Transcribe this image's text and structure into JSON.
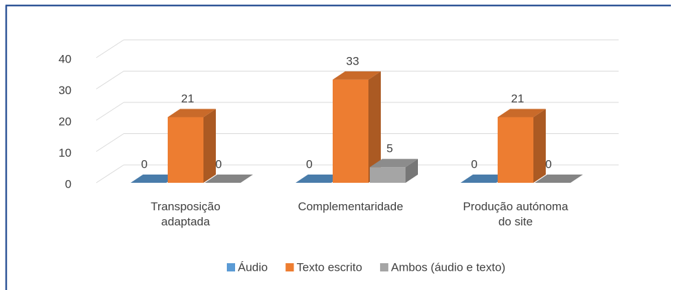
{
  "chart_data": {
    "type": "bar3d",
    "categories": [
      "Transposição adaptada",
      "Complementaridade",
      "Produção autónoma do site"
    ],
    "series": [
      {
        "name": "Áudio",
        "color": "#5b9bd5",
        "values": [
          0,
          0,
          0
        ]
      },
      {
        "name": "Texto escrito",
        "color": "#ed7d31",
        "values": [
          21,
          33,
          21
        ]
      },
      {
        "name": "Ambos (áudio e texto)",
        "color": "#a5a5a5",
        "values": [
          0,
          5,
          0
        ]
      }
    ],
    "ylim": [
      0,
      40
    ],
    "yticks": [
      0,
      10,
      20,
      30,
      40
    ],
    "grid": true,
    "legend": "bottom"
  }
}
